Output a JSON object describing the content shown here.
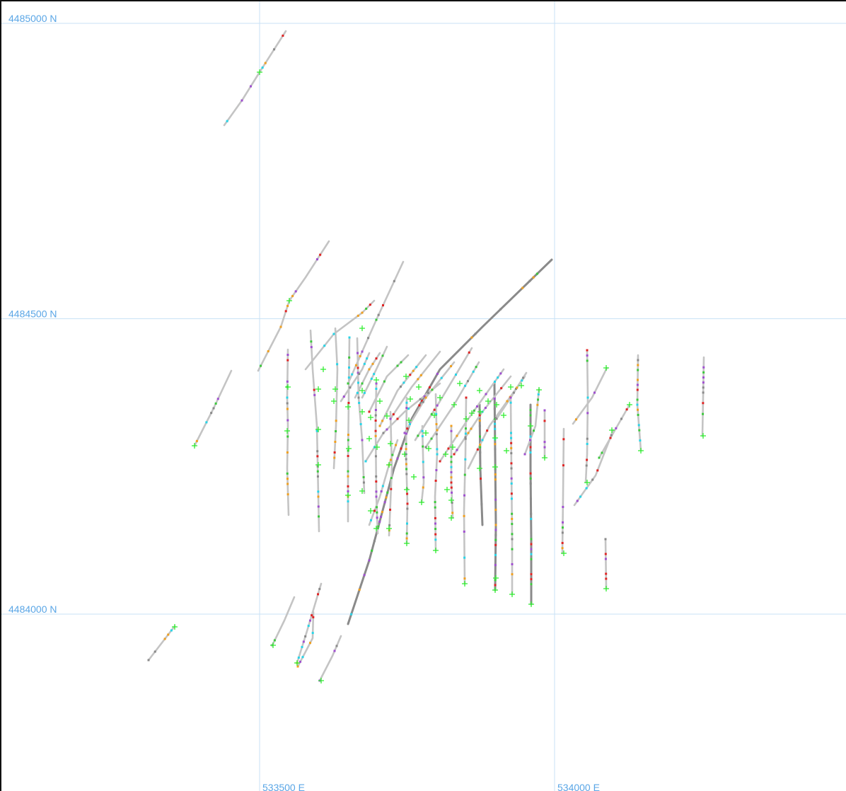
{
  "grid": {
    "northings": [
      {
        "label": "4485000 N",
        "value": 4485000
      },
      {
        "label": "4484500 N",
        "value": 4484500
      },
      {
        "label": "4484000 N",
        "value": 4484000
      }
    ],
    "eastings": [
      {
        "label": "533500 E",
        "value": 533500
      },
      {
        "label": "534000 E",
        "value": 534000
      }
    ]
  },
  "colors": {
    "grid_line": "#c8e2f6",
    "grid_label": "#5aa6e6",
    "trace_light": "#c4c4c4",
    "trace_dark": "#8a8a8a",
    "collar_marker": "#33ee33",
    "assay_cyan": "#27d5e8",
    "assay_red": "#e02424",
    "assay_orange": "#f0a020",
    "assay_purple": "#a050d0",
    "assay_green": "#3cc83c"
  },
  "marker_icon": "plus-icon"
}
